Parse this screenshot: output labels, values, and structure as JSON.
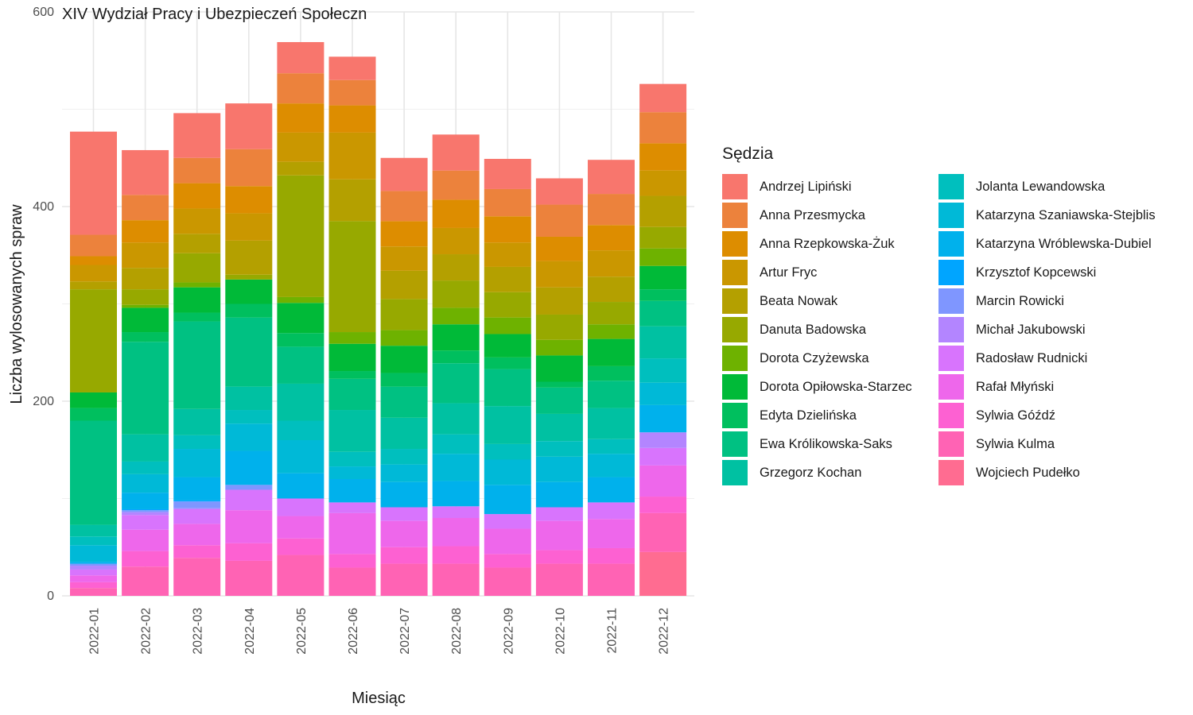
{
  "chart_data": {
    "type": "bar",
    "stacked": true,
    "title": "XIV Wydział Pracy i Ubezpieczeń Społeczn",
    "xlabel": "Miesiąc",
    "ylabel": "Liczba wylosowanych spraw",
    "ylim": [
      0,
      600
    ],
    "yticks": [
      0,
      200,
      400,
      600
    ],
    "grid": true,
    "legend_title": "Sędzia",
    "legend_position": "right",
    "categories": [
      "2022-01",
      "2022-02",
      "2022-03",
      "2022-04",
      "2022-05",
      "2022-06",
      "2022-07",
      "2022-08",
      "2022-09",
      "2022-10",
      "2022-11",
      "2022-12"
    ],
    "series": [
      {
        "name": "Andrzej Lipiński",
        "color": "#F8766D",
        "values": [
          106,
          46,
          46,
          47,
          32,
          24,
          34,
          37,
          31,
          27,
          35,
          29
        ]
      },
      {
        "name": "Anna Przesmycka",
        "color": "#EC823C",
        "values": [
          22,
          26,
          26,
          38,
          31,
          26,
          31,
          30,
          28,
          33,
          32,
          32
        ]
      },
      {
        "name": "Anna Rzepkowska-Żuk",
        "color": "#DD8D00",
        "values": [
          9,
          23,
          26,
          28,
          30,
          28,
          26,
          29,
          27,
          25,
          26,
          28
        ]
      },
      {
        "name": "Artur Fryc",
        "color": "#CA9700",
        "values": [
          17,
          26,
          26,
          28,
          30,
          48,
          25,
          27,
          25,
          27,
          27,
          26
        ]
      },
      {
        "name": "Beata Nowak",
        "color": "#B4A000",
        "values": [
          8,
          22,
          20,
          35,
          14,
          43,
          29,
          27,
          26,
          28,
          26,
          32
        ]
      },
      {
        "name": "Danuta Badowska",
        "color": "#97A900",
        "values": [
          106,
          16,
          30,
          5,
          125,
          114,
          32,
          28,
          26,
          26,
          23,
          22
        ]
      },
      {
        "name": "Dorota Czyżewska",
        "color": "#6EB200",
        "values": [
          0,
          3,
          5,
          0,
          6,
          12,
          16,
          17,
          17,
          16,
          15,
          18
        ]
      },
      {
        "name": "Dorota Opiłowska-Starzec",
        "color": "#00BA38",
        "values": [
          16,
          25,
          26,
          25,
          31,
          28,
          28,
          27,
          24,
          27,
          28,
          24
        ]
      },
      {
        "name": "Edyta Dzielińska",
        "color": "#00BF5E",
        "values": [
          13,
          10,
          9,
          14,
          14,
          8,
          14,
          13,
          12,
          6,
          15,
          12
        ]
      },
      {
        "name": "Ewa Królikowska-Saks",
        "color": "#00C182",
        "values": [
          107,
          95,
          90,
          71,
          38,
          32,
          32,
          41,
          38,
          27,
          28,
          26
        ]
      },
      {
        "name": "Grzegorz Kochan",
        "color": "#00C1A2",
        "values": [
          12,
          28,
          27,
          24,
          38,
          43,
          32,
          32,
          39,
          28,
          32,
          33
        ]
      },
      {
        "name": "Jolanta Lewandowska",
        "color": "#00BFBE",
        "values": [
          9,
          13,
          14,
          14,
          20,
          15,
          16,
          20,
          16,
          16,
          15,
          25
        ]
      },
      {
        "name": "Katarzyna Szaniawska-Stejblis",
        "color": "#00B9D7",
        "values": [
          17,
          19,
          29,
          28,
          34,
          13,
          18,
          28,
          26,
          26,
          24,
          23
        ]
      },
      {
        "name": "Katarzyna Wróblewska-Dubiel",
        "color": "#00B1EC",
        "values": [
          2,
          17,
          24,
          35,
          26,
          24,
          26,
          26,
          30,
          26,
          26,
          28
        ]
      },
      {
        "name": "Krzysztof Kopcewski",
        "color": "#00A5FF",
        "values": [
          0,
          1,
          1,
          0,
          0,
          0,
          0,
          0,
          0,
          0,
          0,
          0
        ]
      },
      {
        "name": "Marcin Rowicki",
        "color": "#7F96FF",
        "values": [
          2,
          2,
          7,
          5,
          0,
          0,
          0,
          0,
          0,
          0,
          0,
          0
        ]
      },
      {
        "name": "Michał Jakubowski",
        "color": "#B385FF",
        "values": [
          4,
          3,
          1,
          0,
          0,
          0,
          0,
          0,
          0,
          0,
          0,
          16
        ]
      },
      {
        "name": "Radosław Rudnicki",
        "color": "#D874FD",
        "values": [
          6,
          15,
          15,
          21,
          18,
          11,
          14,
          12,
          15,
          14,
          17,
          18
        ]
      },
      {
        "name": "Rafał Młyński",
        "color": "#EE67EB",
        "values": [
          7,
          22,
          22,
          34,
          23,
          42,
          27,
          29,
          26,
          30,
          30,
          32
        ]
      },
      {
        "name": "Sylwia Góźdź",
        "color": "#FD61D2",
        "values": [
          6,
          16,
          13,
          18,
          17,
          14,
          17,
          18,
          14,
          14,
          16,
          17
        ]
      },
      {
        "name": "Sylwia Kulma",
        "color": "#FF63B4",
        "values": [
          8,
          30,
          39,
          36,
          42,
          29,
          33,
          33,
          29,
          33,
          33,
          40
        ]
      },
      {
        "name": "Wojciech Pudełko",
        "color": "#FF6C91",
        "values": [
          0,
          0,
          0,
          0,
          0,
          0,
          0,
          0,
          0,
          0,
          0,
          45
        ]
      }
    ]
  }
}
